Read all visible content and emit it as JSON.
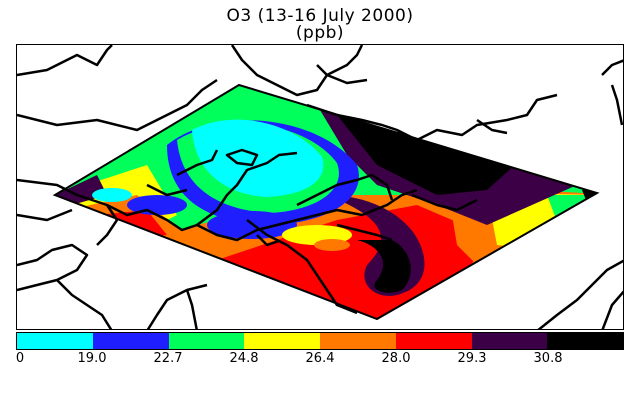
{
  "title": {
    "line1": "O3 (13-16 July 2000)",
    "line2": "(ppb)"
  },
  "colorbar": {
    "colors": [
      "#00ffff",
      "#1e1eff",
      "#00ff5a",
      "#ffff00",
      "#ff7800",
      "#ff0000",
      "#3c0046",
      "#000000"
    ],
    "labels": [
      "0",
      "19.0",
      "22.7",
      "24.8",
      "26.4",
      "28.0",
      "29.3",
      "30.8"
    ]
  }
}
